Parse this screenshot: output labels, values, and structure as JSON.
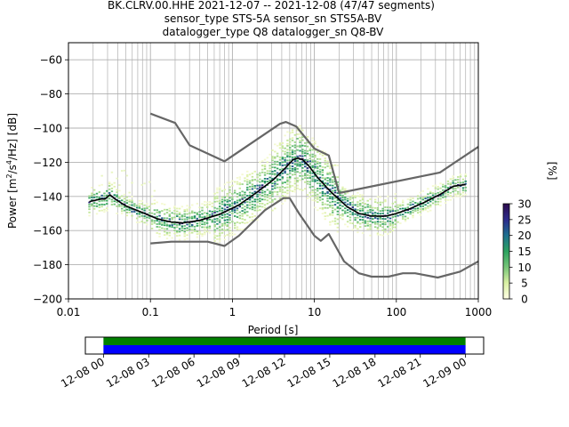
{
  "title_lines": [
    "BK.CLRV.00.HHE   2021-12-07 -- 2021-12-08  (47/47 segments)",
    "sensor_type STS-5A sensor_sn STS5A-BV",
    "datalogger_type Q8 datalogger_sn Q8-BV"
  ],
  "chart_data": [
    {
      "type": "line",
      "xlabel": "Period [s]",
      "ylabel_main": "Power [m",
      "ylabel_sup1": "2",
      "ylabel_mid": "/s",
      "ylabel_sup2": "4",
      "ylabel_end": "/Hz] [dB]",
      "xscale": "log",
      "xlim": [
        0.01,
        1000
      ],
      "ylim": [
        -200,
        -50
      ],
      "xticks": [
        {
          "value": 0.01,
          "label": "0.01"
        },
        {
          "value": 0.1,
          "label": "0.1"
        },
        {
          "value": 1,
          "label": "1"
        },
        {
          "value": 10,
          "label": "10"
        },
        {
          "value": 100,
          "label": "100"
        },
        {
          "value": 1000,
          "label": "1000"
        }
      ],
      "yticks": [
        {
          "value": -60,
          "label": "−60"
        },
        {
          "value": -80,
          "label": "−80"
        },
        {
          "value": -100,
          "label": "−100"
        },
        {
          "value": -120,
          "label": "−120"
        },
        {
          "value": -140,
          "label": "−140"
        },
        {
          "value": -160,
          "label": "−160"
        },
        {
          "value": -180,
          "label": "−180"
        },
        {
          "value": -200,
          "label": "−200"
        }
      ],
      "grid": true,
      "colorbar": {
        "label": "[%]",
        "range": [
          0,
          30
        ],
        "ticks": [
          "0",
          "5",
          "10",
          "15",
          "20",
          "25",
          "30"
        ],
        "colors": [
          "#ffffe5",
          "#d9f0a3",
          "#78c679",
          "#2ca25f",
          "#1d6f8f",
          "#2c2c8c",
          "#2d0b4e"
        ]
      },
      "series": [
        {
          "color": "#666666",
          "points": [
            [
              0.1,
              -91.5
            ],
            [
              0.2,
              -97
            ],
            [
              0.3,
              -110
            ],
            [
              0.8,
              -119.5
            ],
            [
              3.8,
              -97.5
            ],
            [
              4.5,
              -96.4
            ],
            [
              6,
              -99
            ],
            [
              10,
              -112
            ],
            [
              15,
              -116
            ],
            [
              20,
              -138
            ],
            [
              340,
              -126
            ],
            [
              1000,
              -111
            ]
          ]
        },
        {
          "color": "#666666",
          "points": [
            [
              0.1,
              -167.5
            ],
            [
              0.18,
              -166.5
            ],
            [
              0.5,
              -166.5
            ],
            [
              0.8,
              -169
            ],
            [
              1.2,
              -163
            ],
            [
              2.5,
              -148
            ],
            [
              4.2,
              -141
            ],
            [
              5,
              -141
            ],
            [
              6.5,
              -150
            ],
            [
              10,
              -163
            ],
            [
              12,
              -166
            ],
            [
              15,
              -162
            ],
            [
              23,
              -178
            ],
            [
              35,
              -185
            ],
            [
              50,
              -187
            ],
            [
              80,
              -187
            ],
            [
              120,
              -185
            ],
            [
              170,
              -185
            ],
            [
              320,
              -187.5
            ],
            [
              600,
              -184
            ],
            [
              1000,
              -178
            ]
          ]
        },
        {
          "color": "#000000",
          "points": [
            [
              0.018,
              -143
            ],
            [
              0.025,
              -141.5
            ],
            [
              0.028,
              -141.5
            ],
            [
              0.032,
              -139
            ],
            [
              0.037,
              -141.5
            ],
            [
              0.05,
              -145.5
            ],
            [
              0.08,
              -149.5
            ],
            [
              0.12,
              -153
            ],
            [
              0.18,
              -155
            ],
            [
              0.25,
              -155.5
            ],
            [
              0.4,
              -154
            ],
            [
              0.7,
              -150.5
            ],
            [
              1.2,
              -145
            ],
            [
              2,
              -137.5
            ],
            [
              3.2,
              -130
            ],
            [
              4.5,
              -123
            ],
            [
              5.5,
              -118.5
            ],
            [
              6.3,
              -117.5
            ],
            [
              7.2,
              -118.5
            ],
            [
              8.5,
              -122
            ],
            [
              11,
              -129
            ],
            [
              16,
              -137.5
            ],
            [
              25,
              -146
            ],
            [
              35,
              -150
            ],
            [
              50,
              -151.5
            ],
            [
              75,
              -151.5
            ],
            [
              100,
              -150
            ],
            [
              150,
              -147
            ],
            [
              220,
              -143.5
            ],
            [
              350,
              -138.5
            ],
            [
              500,
              -134
            ],
            [
              700,
              -133
            ]
          ]
        }
      ]
    },
    {
      "type": "timeline",
      "xticks": [
        "12-08 00",
        "12-08 03",
        "12-08 06",
        "12-08 09",
        "12-08 12",
        "12-08 15",
        "12-08 18",
        "12-08 21",
        "12-09 00"
      ],
      "bars": [
        {
          "color": "#008000",
          "start_hour": 0,
          "end_hour": 24
        },
        {
          "color": "#0000ff",
          "start_hour": 0,
          "end_hour": 24
        }
      ],
      "xlim_hours": [
        -1.2,
        25.2
      ]
    }
  ]
}
